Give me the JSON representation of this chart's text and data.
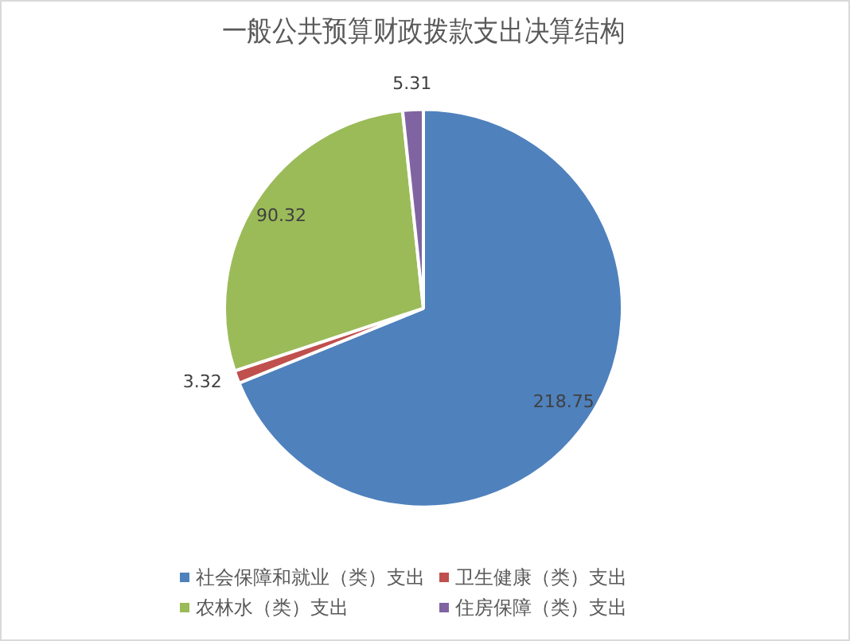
{
  "chart_data": {
    "type": "pie",
    "title": "一般公共预算财政拨款支出决算结构",
    "categories": [
      "社会保障和就业（类）支出",
      "卫生健康（类）支出",
      "农林水（类）支出",
      "住房保障（类）支出"
    ],
    "values": [
      218.75,
      3.32,
      90.32,
      5.31
    ],
    "colors": [
      "#4f81bd",
      "#c0504d",
      "#9bbb59",
      "#8064a2"
    ],
    "data_labels": true,
    "legend": "bottom"
  }
}
